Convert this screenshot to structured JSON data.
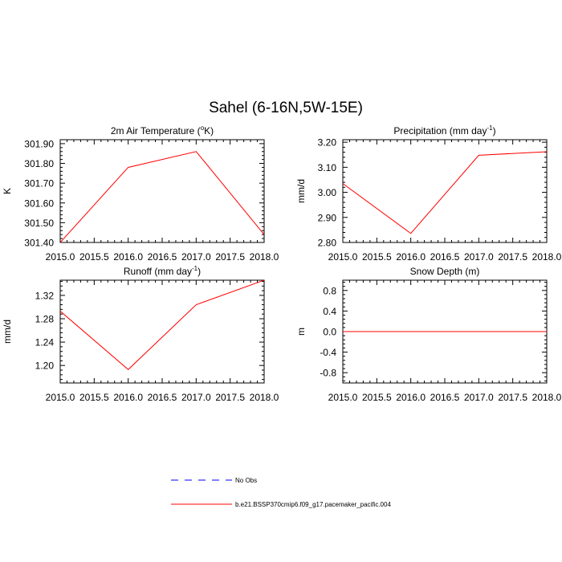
{
  "title": "Sahel (6-16N,5W-15E)",
  "chart_data": [
    {
      "type": "line",
      "title_text": "2m Air Temperature (",
      "title_sup": "o",
      "title_suffix": "K)",
      "ylabel": "K",
      "x": [
        2015.0,
        2016.0,
        2017.0,
        2018.0
      ],
      "series": [
        {
          "values": [
            301.4,
            301.78,
            301.86,
            301.44
          ],
          "color": "#ff0000"
        }
      ],
      "xlim": [
        2015.0,
        2018.0
      ],
      "ylim": [
        301.4,
        301.92
      ],
      "xticks": [
        "2015.0",
        "2015.5",
        "2016.0",
        "2016.5",
        "2017.0",
        "2017.5",
        "2018.0"
      ],
      "yticks": [
        "301.40",
        "301.50",
        "301.60",
        "301.70",
        "301.80",
        "301.90"
      ]
    },
    {
      "type": "line",
      "title_text": "Precipitation (mm day",
      "title_sup": "-1",
      "title_suffix": ")",
      "ylabel": "mm/d",
      "x": [
        2015.0,
        2016.0,
        2017.0,
        2018.0
      ],
      "series": [
        {
          "values": [
            3.035,
            2.836,
            3.148,
            3.162
          ],
          "color": "#ff0000"
        }
      ],
      "xlim": [
        2015.0,
        2018.0
      ],
      "ylim": [
        2.8,
        3.21
      ],
      "xticks": [
        "2015.0",
        "2015.5",
        "2016.0",
        "2016.5",
        "2017.0",
        "2017.5",
        "2018.0"
      ],
      "yticks": [
        "2.80",
        "2.90",
        "3.00",
        "3.10",
        "3.20"
      ]
    },
    {
      "type": "line",
      "title_text": "Runoff (mm day",
      "title_sup": "-1",
      "title_suffix": ")",
      "ylabel": "mm/d",
      "x": [
        2015.0,
        2016.0,
        2017.0,
        2018.0
      ],
      "series": [
        {
          "values": [
            1.293,
            1.193,
            1.304,
            1.346
          ],
          "color": "#ff0000"
        }
      ],
      "xlim": [
        2015.0,
        2018.0
      ],
      "ylim": [
        1.17,
        1.346
      ],
      "xticks": [
        "2015.0",
        "2015.5",
        "2016.0",
        "2016.5",
        "2017.0",
        "2017.5",
        "2018.0"
      ],
      "yticks": [
        "1.20",
        "1.24",
        "1.28",
        "1.32"
      ]
    },
    {
      "type": "line",
      "title_text": "Snow Depth (m)",
      "title_sup": "",
      "title_suffix": "",
      "ylabel": "m",
      "x": [
        2015.0,
        2016.0,
        2017.0,
        2018.0
      ],
      "series": [
        {
          "values": [
            0.0,
            0.0,
            0.0,
            0.0
          ],
          "color": "#ff0000"
        }
      ],
      "xlim": [
        2015.0,
        2018.0
      ],
      "ylim": [
        -1.0,
        1.0
      ],
      "xticks": [
        "2015.0",
        "2015.5",
        "2016.0",
        "2016.5",
        "2017.0",
        "2017.5",
        "2018.0"
      ],
      "yticks": [
        "-0.8",
        "-0.4",
        "0.0",
        "0.4",
        "0.8"
      ]
    }
  ],
  "legend": [
    {
      "label": "No Obs",
      "color": "#0000ff",
      "dash": true
    },
    {
      "label": "b.e21.BSSP370cmip6.f09_g17.pacemaker_pacific.004",
      "color": "#ff0000",
      "dash": false
    }
  ]
}
